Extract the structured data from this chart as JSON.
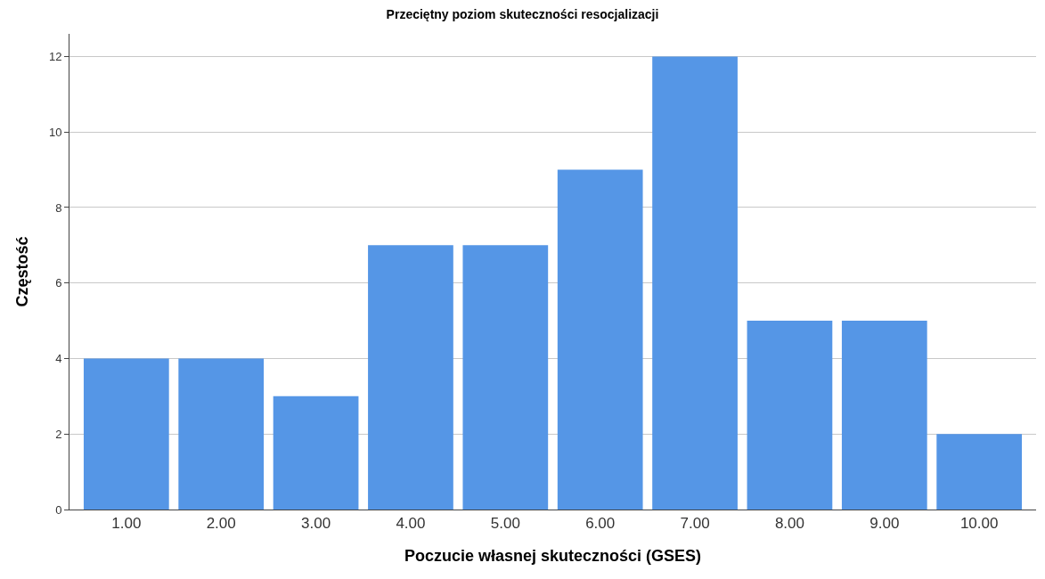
{
  "chart_data": {
    "type": "bar",
    "title": "Przeciętny poziom skuteczności resocjalizacji",
    "xlabel": "Poczucie własnej skuteczności (GSES)",
    "ylabel": "Częstość",
    "categories": [
      "1.00",
      "2.00",
      "3.00",
      "4.00",
      "5.00",
      "6.00",
      "7.00",
      "8.00",
      "9.00",
      "10.00"
    ],
    "values": [
      4,
      4,
      3,
      7,
      7,
      9,
      12,
      5,
      5,
      2
    ],
    "color": "#5596e6",
    "ylim": [
      0,
      12.6
    ],
    "yticks": [
      0,
      2,
      4,
      6,
      8,
      10,
      12
    ],
    "grid": "y"
  }
}
